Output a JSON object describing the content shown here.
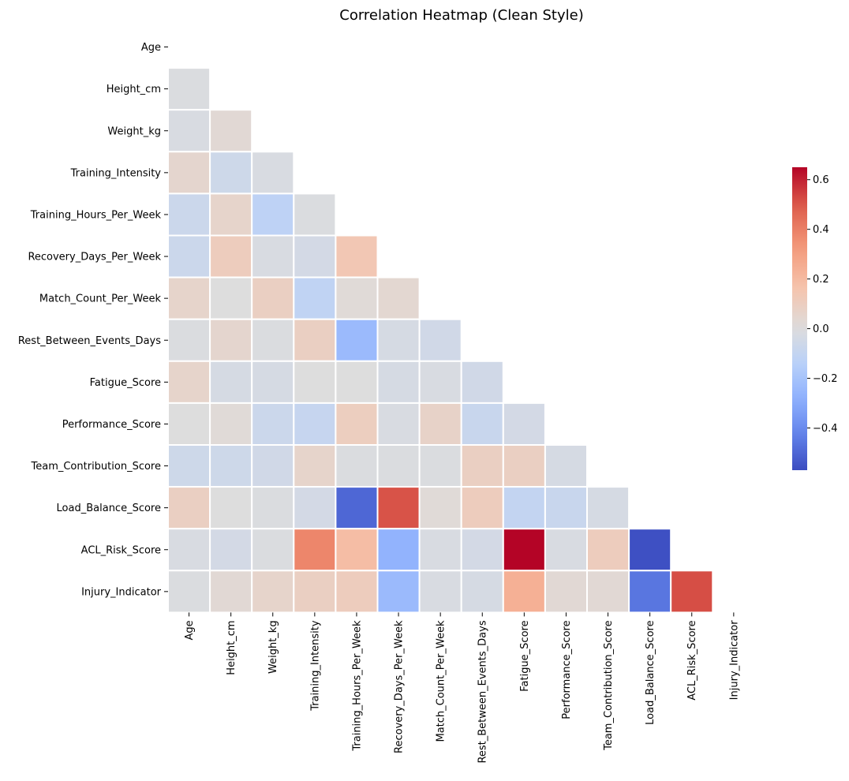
{
  "chart_data": {
    "type": "heatmap",
    "title": "Correlation Heatmap (Clean Style)",
    "variables": [
      "Age",
      "Height_cm",
      "Weight_kg",
      "Training_Intensity",
      "Training_Hours_Per_Week",
      "Recovery_Days_Per_Week",
      "Match_Count_Per_Week",
      "Rest_Between_Events_Days",
      "Fatigue_Score",
      "Performance_Score",
      "Team_Contribution_Score",
      "Load_Balance_Score",
      "ACL_Risk_Score",
      "Injury_Indicator"
    ],
    "mask": "upper-triangle-including-diagonal",
    "values": [
      [
        null,
        null,
        null,
        null,
        null,
        null,
        null,
        null,
        null,
        null,
        null,
        null,
        null
      ],
      [
        -0.01
      ],
      [
        -0.02,
        0.03
      ],
      [
        0.05,
        -0.06,
        -0.02
      ],
      [
        -0.07,
        0.06,
        -0.12,
        -0.01
      ],
      [
        -0.07,
        0.11,
        -0.02,
        -0.04,
        0.14
      ],
      [
        0.06,
        0.0,
        0.09,
        -0.11,
        0.02,
        0.04
      ],
      [
        -0.01,
        0.05,
        -0.01,
        0.09,
        -0.24,
        -0.03,
        -0.05
      ],
      [
        0.06,
        -0.03,
        -0.03,
        0.0,
        0.0,
        -0.03,
        -0.02,
        -0.05
      ],
      [
        0.0,
        0.02,
        -0.07,
        -0.09,
        0.1,
        -0.02,
        0.07,
        -0.08,
        -0.04
      ],
      [
        -0.06,
        -0.06,
        -0.05,
        0.06,
        -0.01,
        -0.01,
        -0.01,
        0.09,
        0.09,
        -0.03
      ],
      [
        0.09,
        0.0,
        -0.01,
        -0.04,
        -0.5,
        0.51,
        0.02,
        0.11,
        -0.1,
        -0.08,
        -0.03
      ],
      [
        -0.02,
        -0.04,
        -0.01,
        0.38,
        0.19,
        -0.27,
        -0.02,
        -0.04,
        0.65,
        -0.02,
        0.11,
        -0.56
      ],
      [
        -0.01,
        0.03,
        0.06,
        0.09,
        0.11,
        -0.24,
        -0.02,
        -0.03,
        0.24,
        0.03,
        0.03,
        -0.46,
        0.52
      ]
    ],
    "colormap": "coolwarm",
    "vmin": -0.57,
    "vmax": 0.65,
    "colorbar": {
      "ticks": [
        -0.4,
        -0.2,
        0.0,
        0.2,
        0.4,
        0.6
      ],
      "tick_labels": [
        "−0.4",
        "−0.2",
        "0.0",
        "0.2",
        "0.4",
        "0.6"
      ]
    },
    "xlabel": "",
    "ylabel": ""
  }
}
